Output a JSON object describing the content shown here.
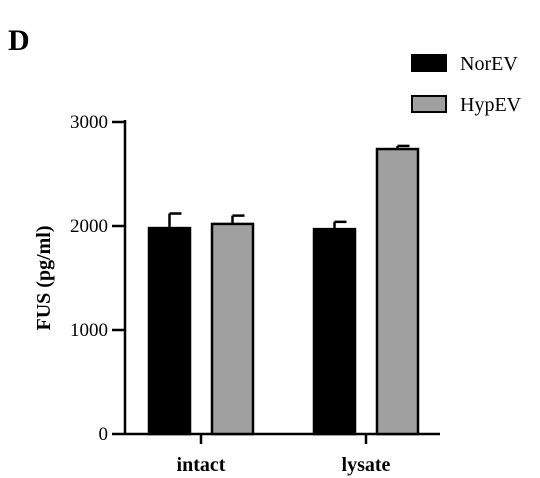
{
  "panel_label": "D",
  "chart_data": {
    "type": "bar",
    "categories": [
      "intact",
      "lysate"
    ],
    "series": [
      {
        "name": "NorEV",
        "values": [
          1980,
          1970
        ],
        "errors": [
          140,
          70
        ],
        "color": "#000000"
      },
      {
        "name": "HypEV",
        "values": [
          2020,
          2740
        ],
        "errors": [
          80,
          30
        ],
        "color": "#a0a0a0"
      }
    ],
    "ylabel": "FUS (pg/ml)",
    "xlabel": "",
    "ylim": [
      0,
      3000
    ],
    "yticks": [
      0,
      1000,
      2000,
      3000
    ],
    "legend_position": "top-right",
    "grid": false
  }
}
